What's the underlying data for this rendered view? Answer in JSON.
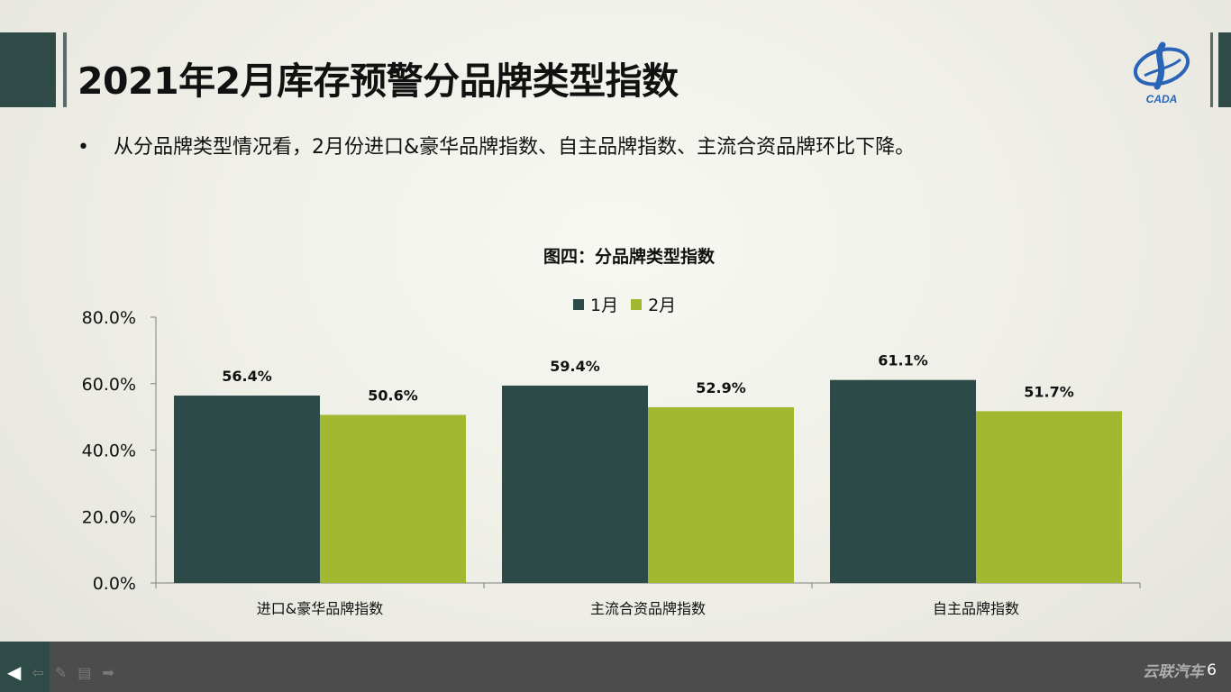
{
  "slide": {
    "title": "2021年2月库存预警分品牌类型指数",
    "bullet_symbol": "•",
    "bullet_text": "从分品牌类型情况看，2月份进口&豪华品牌指数、自主品牌指数、主流合资品牌环比下降。",
    "logo_text": "CADA",
    "page_number": "6",
    "watermark": "云联汽车"
  },
  "colors": {
    "series_1": "#2b4a48",
    "series_2": "#a3b831",
    "dark_green": "#2f4b47",
    "bar_gray": "#4c4c4c"
  },
  "nav": {
    "prev_icon": "prev-arrow-icon",
    "back_icon": "back-arrow-icon",
    "pen_icon": "pen-icon",
    "menu_icon": "menu-icon",
    "next_icon": "next-arrow-icon"
  },
  "chart_data": {
    "type": "bar",
    "title": "图四：分品牌类型指数",
    "categories": [
      "进口&豪华品牌指数",
      "主流合资品牌指数",
      "自主品牌指数"
    ],
    "series": [
      {
        "name": "1月",
        "values": [
          56.4,
          59.4,
          61.1
        ],
        "labels": [
          "56.4%",
          "59.4%",
          "61.1%"
        ]
      },
      {
        "name": "2月",
        "values": [
          50.6,
          52.9,
          51.7
        ],
        "labels": [
          "50.6%",
          "52.9%",
          "51.7%"
        ]
      }
    ],
    "ylim": [
      0,
      80
    ],
    "yticks": [
      "0.0%",
      "20.0%",
      "40.0%",
      "60.0%",
      "80.0%"
    ],
    "legend_position": "top",
    "grid": false
  }
}
